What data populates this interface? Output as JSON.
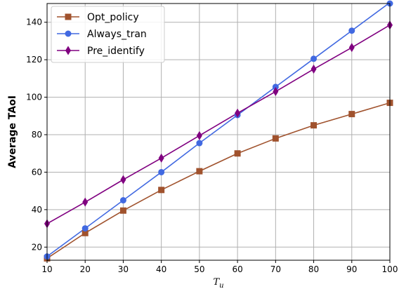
{
  "chart_data": {
    "type": "line",
    "xlabel": "T",
    "xlabel_sub": "u",
    "ylabel": "Average TAoI",
    "xlim": [
      10,
      100
    ],
    "ylim": [
      13,
      150
    ],
    "xticks": [
      10,
      20,
      30,
      40,
      50,
      60,
      70,
      80,
      90,
      100
    ],
    "yticks": [
      20,
      40,
      60,
      80,
      100,
      120,
      140
    ],
    "grid": true,
    "legend_position": "top-left",
    "x": [
      10,
      20,
      30,
      40,
      50,
      60,
      70,
      80,
      90,
      100
    ],
    "series": [
      {
        "name": "Opt_policy",
        "color": "#a0522d",
        "marker": "square",
        "values": [
          14,
          27.5,
          39.5,
          50.5,
          60.5,
          70,
          78,
          85,
          91,
          97
        ]
      },
      {
        "name": "Always_tran",
        "color": "#4169e1",
        "marker": "circle",
        "values": [
          15,
          30,
          45,
          60,
          75.5,
          90.5,
          105.5,
          120.5,
          135.5,
          150.5
        ]
      },
      {
        "name": "Pre_identify",
        "color": "#800080",
        "marker": "diamond",
        "values": [
          32.5,
          44,
          56,
          67.5,
          79.5,
          91.5,
          103,
          115,
          126.5,
          138.5
        ]
      }
    ]
  }
}
